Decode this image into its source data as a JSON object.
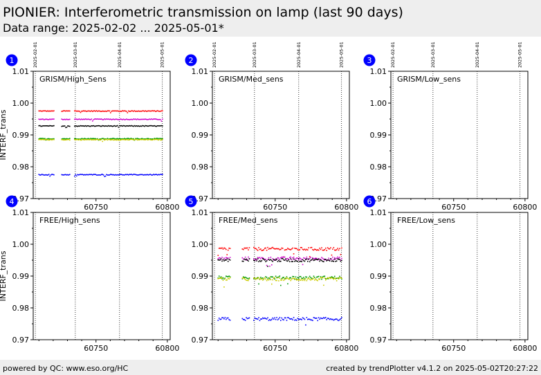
{
  "header": {
    "title": "PIONIER: Interferometric transmission on lamp (last 90 days)",
    "subtitle": "Data range: 2025-02-02 ... 2025-05-01*"
  },
  "footer": {
    "left": "powered by QC: www.eso.org/HC",
    "right": "created by trendPlotter v4.1.2 on 2025-05-02T20:27:22"
  },
  "colors": {
    "red": "#ff0000",
    "magenta": "#cc00cc",
    "black": "#000000",
    "green": "#009900",
    "yellow": "#cccc00",
    "blue": "#0000ff",
    "badge": "#0000ff"
  },
  "chart_data": {
    "type": "scatter",
    "ylabel": "INTERF_trans",
    "ylim": [
      0.97,
      1.01
    ],
    "xlim": [
      60706,
      60802
    ],
    "yticks": [
      "0.97",
      "0.98",
      "0.99",
      "1.00",
      "1.01"
    ],
    "xticks": [
      60750,
      60800
    ],
    "date_markers": [
      {
        "label": "2025-02-01",
        "mjd": 60707.5
      },
      {
        "label": "2025-03-01",
        "mjd": 60735.5
      },
      {
        "label": "2025-04-01",
        "mjd": 60766.5
      },
      {
        "label": "2025-05-01",
        "mjd": 60796.5
      }
    ],
    "panels": [
      {
        "number": "1",
        "label": "GRISM/High_Sens",
        "has_data": true,
        "jitter": 0.00012,
        "x_segments": [
          [
            60710,
            60721
          ],
          [
            60726,
            60732
          ],
          [
            60735,
            60797
          ]
        ],
        "series": [
          {
            "color": "red",
            "level": 0.9975
          },
          {
            "color": "magenta",
            "level": 0.9949
          },
          {
            "color": "black",
            "level": 0.9928
          },
          {
            "color": "green",
            "level": 0.9888
          },
          {
            "color": "yellow",
            "level": 0.9885
          },
          {
            "color": "blue",
            "level": 0.9775
          }
        ]
      },
      {
        "number": "2",
        "label": "GRISM/Med_sens",
        "has_data": false
      },
      {
        "number": "3",
        "label": "GRISM/Low_sens",
        "has_data": false
      },
      {
        "number": "4",
        "label": "FREE/High_sens",
        "has_data": false
      },
      {
        "number": "5",
        "label": "FREE/Med_sens",
        "has_data": true,
        "jitter": 0.0005,
        "x_segments": [
          [
            60710,
            60719
          ],
          [
            60727,
            60732
          ],
          [
            60735,
            60797
          ]
        ],
        "series": [
          {
            "color": "red",
            "level": 0.9985
          },
          {
            "color": "magenta",
            "level": 0.9955
          },
          {
            "color": "black",
            "level": 0.995
          },
          {
            "color": "green",
            "level": 0.9895
          },
          {
            "color": "yellow",
            "level": 0.989
          },
          {
            "color": "blue",
            "level": 0.9765
          }
        ]
      },
      {
        "number": "6",
        "label": "FREE/Low_sens",
        "has_data": false
      }
    ]
  }
}
